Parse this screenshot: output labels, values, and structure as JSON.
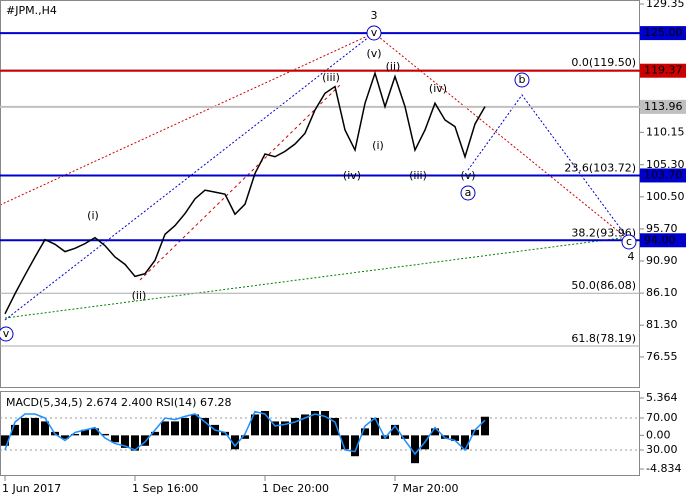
{
  "chart_data": [
    {
      "type": "line",
      "title": "#JPM.,H4",
      "color": "#000000",
      "categories": [
        "1 Jun 2017",
        null,
        null,
        null,
        null,
        null,
        null,
        null,
        null,
        null,
        null,
        null,
        null,
        "1 Sep 16:00",
        null,
        null,
        null,
        null,
        null,
        null,
        null,
        null,
        null,
        null,
        null,
        null,
        "1 Dec 20:00",
        null,
        null,
        null,
        null,
        null,
        null,
        null,
        null,
        null,
        null,
        null,
        null,
        "7 Mar 20:00",
        null,
        null,
        null,
        null,
        null,
        null,
        null,
        null,
        null
      ],
      "values": [
        83.0,
        86.0,
        88.8,
        91.5,
        94.1,
        93.4,
        92.3,
        92.8,
        93.5,
        94.4,
        93.2,
        91.5,
        90.4,
        88.6,
        89.0,
        91.0,
        94.9,
        96.2,
        98.0,
        100.2,
        101.5,
        101.2,
        100.9,
        97.9,
        99.4,
        104.0,
        106.9,
        106.5,
        107.3,
        108.4,
        110.0,
        113.5,
        116.0,
        117.0,
        110.5,
        107.5,
        114.5,
        119.0,
        114.0,
        118.5,
        114.0,
        107.5,
        110.5,
        114.5,
        112.0,
        111.0,
        106.5,
        111.4,
        114.0
      ],
      "ylim": [
        71.9,
        129.95
      ],
      "yticks": [
        129.35,
        110.15,
        {
          "value": 105.3,
          "label": "105.30"
        },
        {
          "value": 100.5,
          "label": "100.50"
        },
        {
          "value": 95.7,
          "label": "95.70"
        },
        {
          "value": 90.9,
          "label": "90.90"
        },
        {
          "value": 86.1,
          "label": "86.10"
        },
        {
          "value": 81.3,
          "label": "81.30"
        },
        76.55
      ],
      "levels": [
        {
          "value": 125,
          "label": "125.00",
          "color": "#0000cc"
        },
        {
          "value": 119.37,
          "label": "119.37",
          "color": "#cc0000"
        },
        {
          "value": 113.96,
          "label": "113.96",
          "color": "#c0c0c0"
        },
        {
          "value": 103.7,
          "label": "103.70",
          "color": "#0000cc"
        },
        {
          "value": 94,
          "label": "94.00",
          "color": "#0000cc"
        }
      ],
      "fib_levels": [
        {
          "value": 119.5,
          "label": "0.0(119.50)"
        },
        {
          "value": 103.72,
          "label": "23.6(103.72)"
        },
        {
          "value": 93.96,
          "label": "38.2(93.96)"
        },
        {
          "value": 86.08,
          "label": "50.0(86.08)"
        },
        {
          "value": 78.19,
          "label": "61.8(78.19)"
        }
      ],
      "annotations": [
        {
          "text": "3",
          "color": "#cc3300"
        },
        {
          "text": "v",
          "color": "#0000cc",
          "circle": true
        },
        {
          "text": "(v)",
          "color": "#cc0000"
        },
        {
          "text": "(iii)",
          "color": "#cc0000"
        },
        {
          "text": "(ii)",
          "color": "#cc0000"
        },
        {
          "text": "(iv)",
          "color": "#cc0000"
        },
        {
          "text": "(i)",
          "color": "#cc0000"
        },
        {
          "text": "(iv)",
          "color": "#cc0000"
        },
        {
          "text": "(iii)",
          "color": "#cc0000"
        },
        {
          "text": "(v)",
          "color": "#cc0000"
        },
        {
          "text": "a",
          "color": "#0000cc",
          "circle": true
        },
        {
          "text": "b",
          "color": "#0000cc",
          "circle": true
        },
        {
          "text": "c",
          "color": "#0000cc",
          "circle": true
        },
        {
          "text": "4",
          "color": "#cc3300"
        },
        {
          "text": "(i)",
          "color": "#cc0000"
        },
        {
          "text": "(ii)",
          "color": "#cc0000"
        },
        {
          "text": "v",
          "color": "#0000cc",
          "circle": true
        }
      ]
    },
    {
      "type": "combo",
      "title": "MACD(5,34,5) 2.674 2.400 RSI(14) 67.28",
      "series": [
        {
          "type": "bar",
          "color": "#000000",
          "values": [
            -1.5,
            1.5,
            2.5,
            2.5,
            2.0,
            0.5,
            -0.5,
            0.2,
            0.8,
            1.0,
            0.2,
            -1.0,
            -1.8,
            -2.2,
            -1.5,
            0.5,
            2.0,
            2.0,
            2.5,
            3.0,
            2.5,
            1.5,
            0.5,
            -2.0,
            -0.5,
            3.0,
            3.5,
            2.0,
            2.0,
            2.5,
            3.0,
            3.5,
            3.5,
            2.5,
            -2.0,
            -3.0,
            1.0,
            2.5,
            -0.5,
            1.5,
            -0.5,
            -4.0,
            -2.0,
            1.0,
            -0.5,
            -0.8,
            -2.0,
            0.8,
            2.674
          ]
        },
        {
          "type": "line",
          "color": "#1e90ff",
          "axis": "y2",
          "values": [
            30,
            65,
            75,
            75,
            70,
            50,
            42,
            52,
            55,
            58,
            45,
            38,
            35,
            30,
            40,
            55,
            70,
            68,
            72,
            75,
            65,
            55,
            52,
            35,
            50,
            78,
            75,
            60,
            62,
            65,
            70,
            75,
            72,
            65,
            30,
            28,
            60,
            70,
            45,
            60,
            42,
            25,
            40,
            58,
            45,
            42,
            30,
            55,
            67.28
          ]
        }
      ],
      "ylim": [
        -5.84,
        6.37
      ],
      "yticks": [
        5.364,
        {
          "value": 0,
          "label": "0.00"
        },
        -4.834
      ],
      "y2lim": [
        -2.5,
        103.75
      ],
      "y2ticks": [
        {
          "value": 70,
          "label": "70.00"
        },
        {
          "value": 30,
          "label": "30.00"
        }
      ]
    }
  ]
}
